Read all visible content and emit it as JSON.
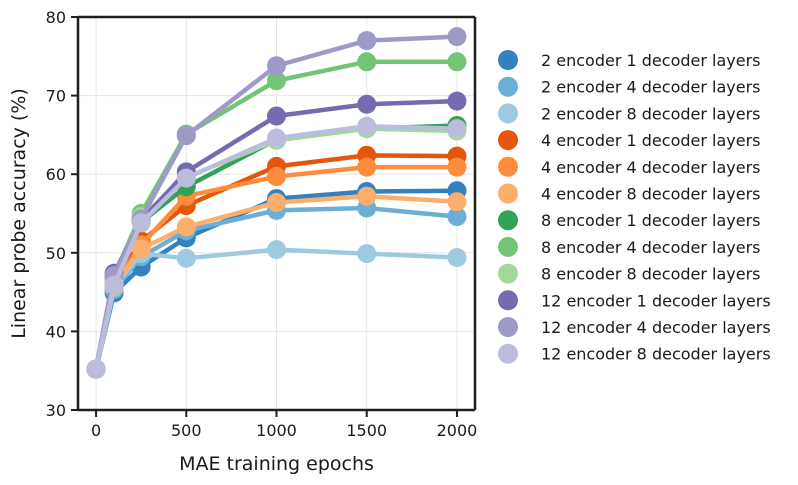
{
  "chart_data": {
    "type": "line",
    "title": "",
    "xlabel": "MAE training epochs",
    "ylabel": "Linear probe accuracy (%)",
    "xlim": [
      -100,
      2100
    ],
    "ylim": [
      30,
      80
    ],
    "xticks": [
      0,
      500,
      1000,
      1500,
      2000
    ],
    "yticks": [
      30,
      40,
      50,
      60,
      70,
      80
    ],
    "grid": true,
    "legend_position": "right",
    "x": [
      0,
      100,
      250,
      500,
      1000,
      1500,
      2000
    ],
    "series": [
      {
        "name": "2 encoder 1 decoder layers",
        "color": "#3182bd",
        "values": [
          35.2,
          44.9,
          48.2,
          51.9,
          56.9,
          57.8,
          57.9
        ]
      },
      {
        "name": "2 encoder 4 decoder layers",
        "color": "#6baed6",
        "values": [
          35.2,
          45.3,
          49.5,
          52.8,
          55.4,
          55.7,
          54.6
        ]
      },
      {
        "name": "2 encoder 8 decoder layers",
        "color": "#9ecae1",
        "values": [
          35.2,
          45.6,
          49.9,
          49.3,
          50.4,
          49.9,
          49.4
        ]
      },
      {
        "name": "4 encoder 1 decoder layers",
        "color": "#e6550d",
        "values": [
          35.2,
          46.3,
          51.5,
          56.0,
          61.0,
          62.4,
          62.3
        ]
      },
      {
        "name": "4 encoder 4 decoder layers",
        "color": "#fd8d3c",
        "values": [
          35.2,
          46.0,
          51.0,
          57.2,
          59.7,
          60.9,
          60.9
        ]
      },
      {
        "name": "4 encoder 8 decoder layers",
        "color": "#fdae6b",
        "values": [
          35.2,
          45.8,
          50.5,
          53.3,
          56.4,
          57.2,
          56.5
        ]
      },
      {
        "name": "8 encoder 1 decoder layers",
        "color": "#31a354",
        "values": [
          35.2,
          46.8,
          53.9,
          58.4,
          64.4,
          65.8,
          66.2
        ]
      },
      {
        "name": "8 encoder 4 decoder layers",
        "color": "#74c476",
        "values": [
          35.2,
          47.0,
          55.0,
          65.1,
          71.9,
          74.3,
          74.3
        ]
      },
      {
        "name": "8 encoder 8 decoder layers",
        "color": "#a1d99b",
        "values": [
          35.2,
          46.5,
          54.6,
          59.6,
          64.3,
          65.8,
          65.5
        ]
      },
      {
        "name": "12 encoder 1 decoder layers",
        "color": "#756bb1",
        "values": [
          35.2,
          47.4,
          54.1,
          60.3,
          67.4,
          68.9,
          69.3
        ]
      },
      {
        "name": "12 encoder 4 decoder layers",
        "color": "#9e9ac8",
        "values": [
          35.2,
          47.1,
          54.3,
          64.9,
          73.8,
          77.0,
          77.5
        ]
      },
      {
        "name": "12 encoder 8 decoder layers",
        "color": "#bcbddc",
        "values": [
          35.2,
          45.9,
          53.8,
          59.5,
          64.6,
          66.1,
          65.8
        ]
      }
    ]
  }
}
